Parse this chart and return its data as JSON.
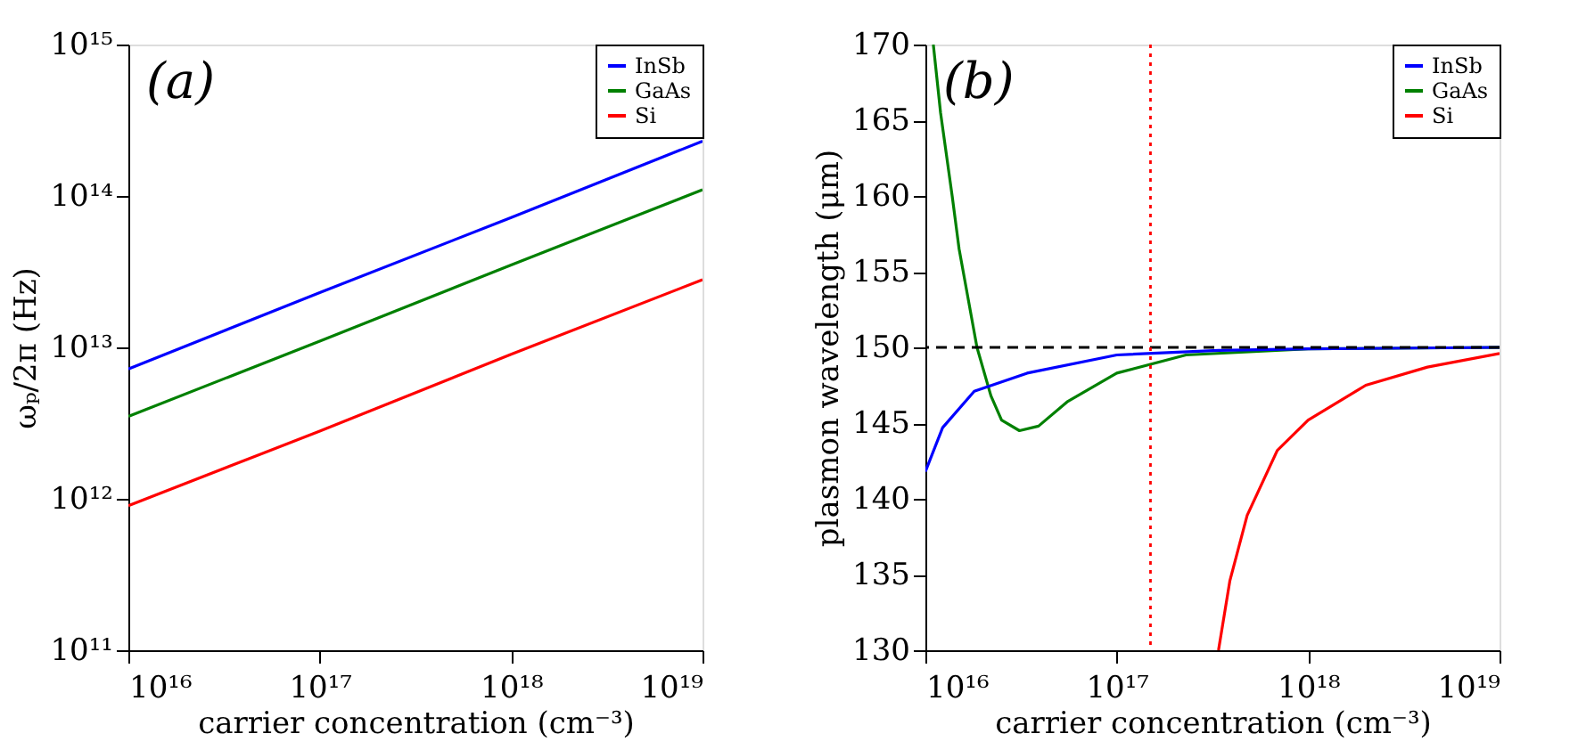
{
  "chart_data": [
    {
      "type": "line",
      "xlabel": "carrier concentration (cm⁻³)",
      "ylabel": "ωₚ/2π (Hz)",
      "log": "xy",
      "grid": false,
      "legend": "top right",
      "line_style": "solid",
      "marker": "none",
      "xlim": [
        1e+16,
        1e+19
      ],
      "xticks": [
        {
          "value": 1e+16,
          "label": "10¹⁶"
        },
        {
          "value": 1e+17,
          "label": "10¹⁷"
        },
        {
          "value": 1e+18,
          "label": "10¹⁸"
        },
        {
          "value": 1e+19,
          "label": "10¹⁹"
        }
      ],
      "ylim": [
        100000000000.0,
        1000000000000000.0
      ],
      "yticks": [
        {
          "value": 100000000000.0,
          "label": "10¹¹"
        },
        {
          "value": 1000000000000.0,
          "label": "10¹²"
        },
        {
          "value": 10000000000000.0,
          "label": "10¹³"
        },
        {
          "value": 100000000000000.0,
          "label": "10¹⁴"
        },
        {
          "value": 1000000000000000.0,
          "label": "10¹⁵"
        }
      ],
      "annotations": [
        "(a)"
      ],
      "series": [
        {
          "name": "InSb",
          "color": "#0000ff",
          "x": [
            1e+16,
            1e+17,
            1e+18,
            1e+19
          ],
          "values": [
            7200000000000.0,
            23000000000000.0,
            72000000000000.0,
            230000000000000.0
          ]
        },
        {
          "name": "GaAs",
          "color": "#008000",
          "x": [
            1e+16,
            1e+17,
            1e+18,
            1e+19
          ],
          "values": [
            3500000000000.0,
            11000000000000.0,
            35000000000000.0,
            110000000000000.0
          ]
        },
        {
          "name": "Si",
          "color": "#ff0000",
          "x": [
            1e+16,
            1e+17,
            1e+18,
            1e+19
          ],
          "values": [
            900000000000.0,
            2800000000000.0,
            9000000000000.0,
            28000000000000.0
          ]
        }
      ]
    },
    {
      "type": "line",
      "xlabel": "carrier concentration (cm⁻³)",
      "ylabel": "plasmon wavelength (μm)",
      "log": "x",
      "grid": false,
      "legend": "top right",
      "line_style": "solid",
      "marker": "none",
      "xlim": [
        1e+16,
        1e+19
      ],
      "xticks": [
        {
          "value": 1e+16,
          "label": "10¹⁶"
        },
        {
          "value": 1e+17,
          "label": "10¹⁷"
        },
        {
          "value": 1e+18,
          "label": "10¹⁸"
        },
        {
          "value": 1e+19,
          "label": "10¹⁹"
        }
      ],
      "ylim": [
        130,
        170
      ],
      "yticks": [
        130,
        135,
        140,
        145,
        150,
        155,
        160,
        165,
        170
      ],
      "annotations": [
        "(b)"
      ],
      "ref_lines": [
        {
          "axis": "y",
          "value": 150,
          "color": "#000000",
          "line_style": "dashed"
        },
        {
          "axis": "x",
          "value": 1.5e+17,
          "color": "#ff0000",
          "line_style": "dotted"
        }
      ],
      "series": [
        {
          "name": "InSb",
          "color": "#0000ff",
          "x": [
            1e+16,
            1.23e+16,
            1.8e+16,
            3.4e+16,
            1e+17,
            3.4e+17,
            1e+18,
            1e+19
          ],
          "values": [
            141.8,
            144.7,
            147.1,
            148.3,
            149.5,
            149.8,
            149.9,
            150
          ]
        },
        {
          "name": "GaAs",
          "color": "#008000",
          "x": [
            1.1e+16,
            1.2e+16,
            1.38e+16,
            1.5e+16,
            1.86e+16,
            2.2e+16,
            2.5e+16,
            3.1e+16,
            3.9e+16,
            5.5e+16,
            1e+17,
            2.3e+17,
            1e+18,
            1e+19
          ],
          "values": [
            170,
            165.5,
            160,
            156.5,
            150,
            146.8,
            145.2,
            144.5,
            144.8,
            146.4,
            148.3,
            149.5,
            149.9,
            150
          ]
        },
        {
          "name": "Si",
          "color": "#ff0000",
          "x": [
            3.4e+17,
            3.9e+17,
            4.8e+17,
            6.9e+17,
            1e+18,
            2e+18,
            4.2e+18,
            1e+19
          ],
          "values": [
            130,
            134.6,
            138.9,
            143.2,
            145.2,
            147.5,
            148.7,
            149.6
          ]
        }
      ]
    }
  ]
}
